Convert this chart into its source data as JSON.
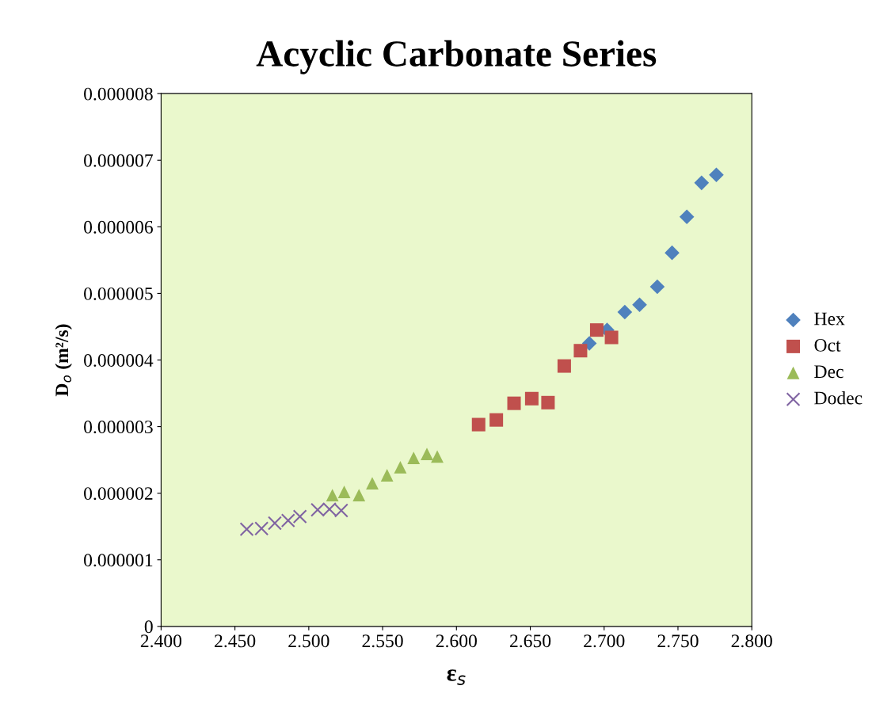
{
  "chart_data": {
    "type": "scatter",
    "title": "Acyclic Carbonate Series",
    "xlabel": "ε$_{s}$",
    "ylabel": "D$_{o}$ (m²/s)",
    "xlim": [
      2.4,
      2.8
    ],
    "ylim": [
      0,
      8e-06
    ],
    "xticks": [
      {
        "value": 2.4,
        "label": "2.400"
      },
      {
        "value": 2.45,
        "label": "2.450"
      },
      {
        "value": 2.5,
        "label": "2.500"
      },
      {
        "value": 2.55,
        "label": "2.550"
      },
      {
        "value": 2.6,
        "label": "2.600"
      },
      {
        "value": 2.65,
        "label": "2.650"
      },
      {
        "value": 2.7,
        "label": "2.700"
      },
      {
        "value": 2.75,
        "label": "2.750"
      },
      {
        "value": 2.8,
        "label": "2.800"
      }
    ],
    "yticks": [
      0,
      {
        "value": 1e-06,
        "label": "0.000001"
      },
      {
        "value": 2e-06,
        "label": "0.000002"
      },
      {
        "value": 3e-06,
        "label": "0.000003"
      },
      {
        "value": 4e-06,
        "label": "0.000004"
      },
      {
        "value": 5e-06,
        "label": "0.000005"
      },
      {
        "value": 6e-06,
        "label": "0.000006"
      },
      {
        "value": 7e-06,
        "label": "0.000007"
      },
      {
        "value": 8e-06,
        "label": "0.000008"
      }
    ],
    "grid": false,
    "legend": "right",
    "series": [
      {
        "name": "Hex",
        "color": "#4f81bd",
        "marker": "diamond",
        "x": [
          2.69,
          2.702,
          2.714,
          2.724,
          2.736,
          2.746,
          2.756,
          2.766,
          2.776
        ],
        "values": [
          4.25e-06,
          4.45e-06,
          4.72e-06,
          4.83e-06,
          5.1e-06,
          5.61e-06,
          6.15e-06,
          6.66e-06,
          6.78e-06
        ]
      },
      {
        "name": "Oct",
        "color": "#c0504d",
        "marker": "square",
        "x": [
          2.615,
          2.627,
          2.639,
          2.651,
          2.662,
          2.673,
          2.684,
          2.695,
          2.705
        ],
        "values": [
          3.03e-06,
          3.1e-06,
          3.35e-06,
          3.42e-06,
          3.36e-06,
          3.91e-06,
          4.14e-06,
          4.45e-06,
          4.34e-06
        ]
      },
      {
        "name": "Dec",
        "color": "#9bbb59",
        "marker": "triangle",
        "x": [
          2.516,
          2.524,
          2.534,
          2.543,
          2.553,
          2.562,
          2.571,
          2.58,
          2.587
        ],
        "values": [
          1.97e-06,
          2.02e-06,
          1.97e-06,
          2.15e-06,
          2.27e-06,
          2.39e-06,
          2.53e-06,
          2.59e-06,
          2.55e-06
        ]
      },
      {
        "name": "Dodec",
        "color": "#8064a2",
        "marker": "cross",
        "x": [
          2.458,
          2.468,
          2.477,
          2.486,
          2.494,
          2.506,
          2.514,
          2.522
        ],
        "values": [
          1.46e-06,
          1.47e-06,
          1.55e-06,
          1.59e-06,
          1.65e-06,
          1.75e-06,
          1.76e-06,
          1.74e-06
        ]
      }
    ]
  }
}
